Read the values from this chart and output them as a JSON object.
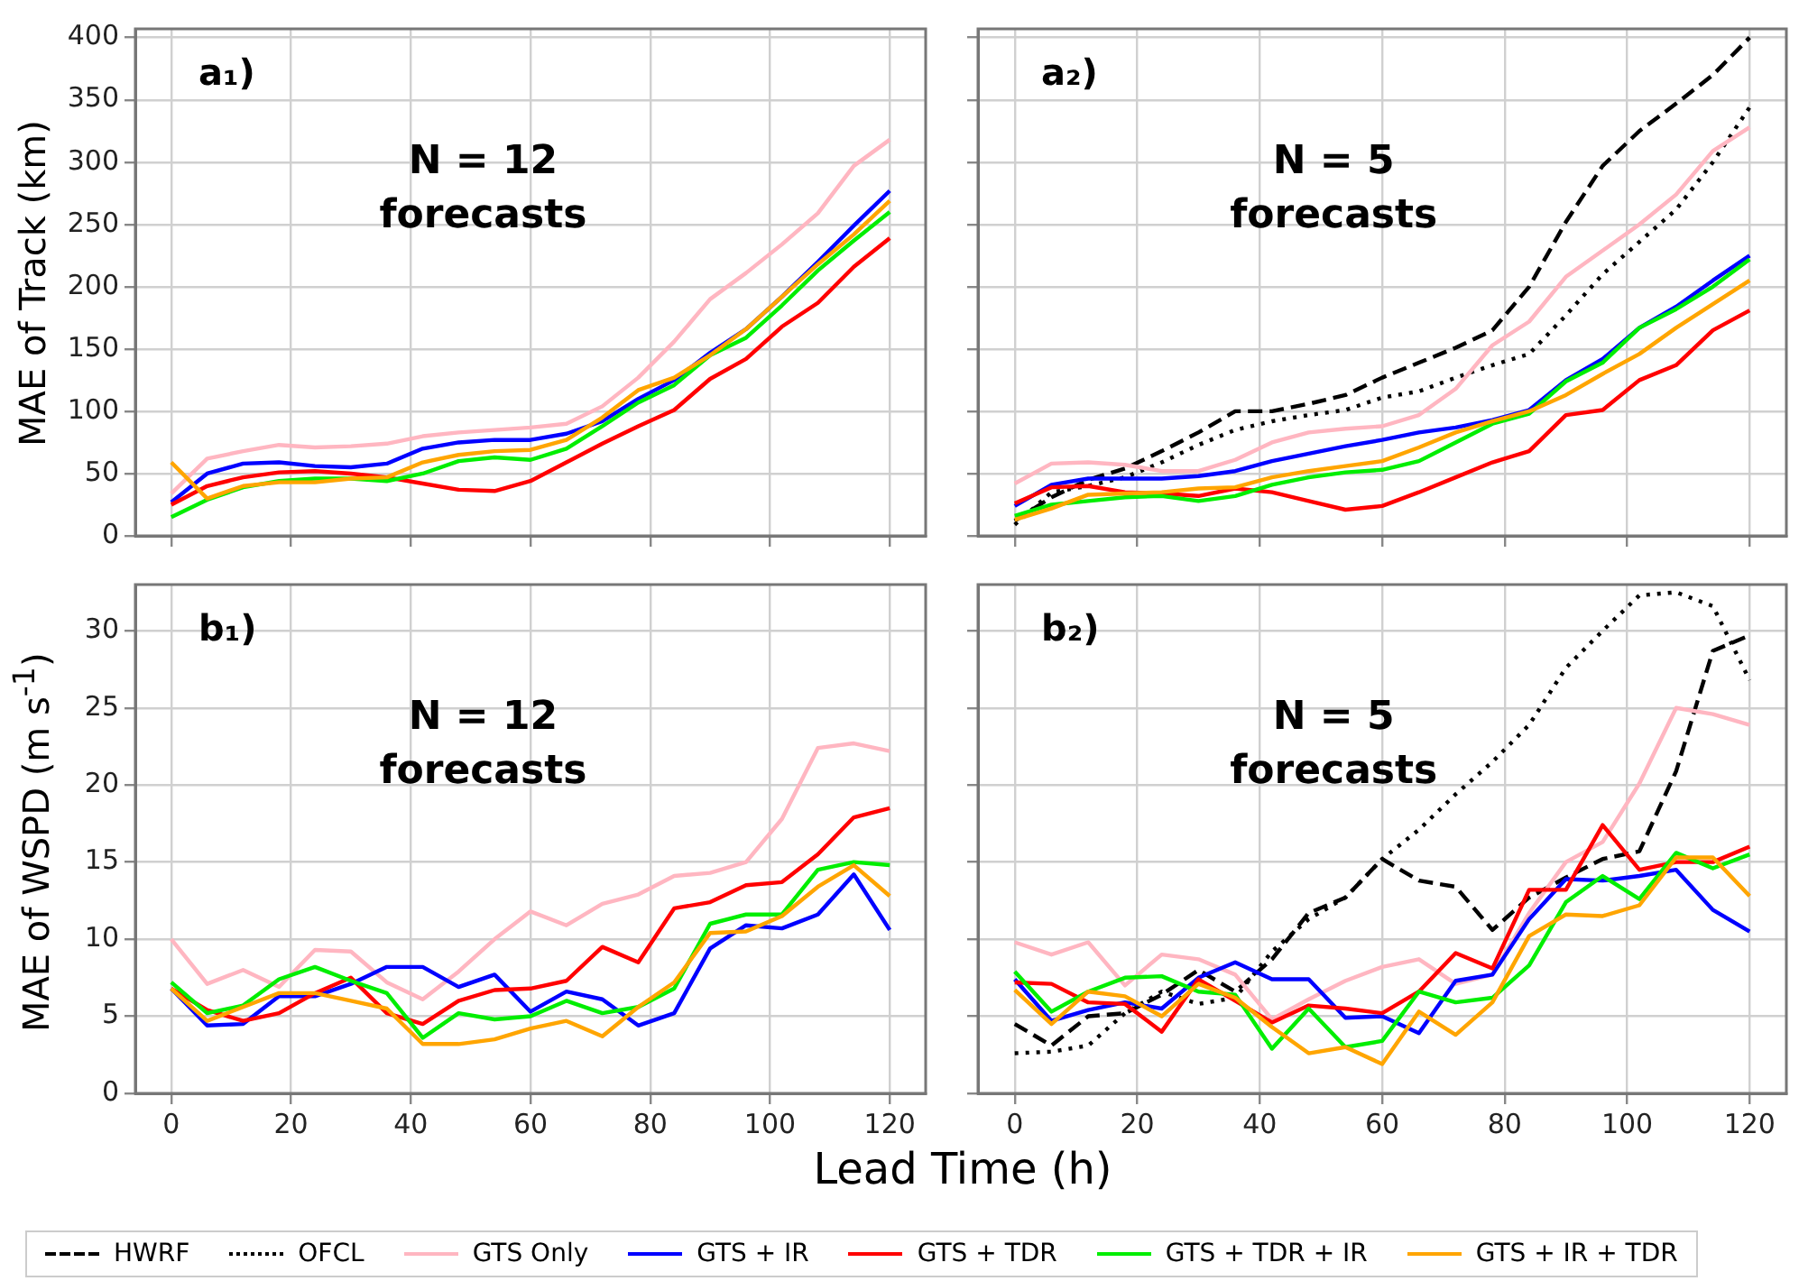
{
  "chart_data": [
    {
      "type": "line",
      "ylabel": "MAE of Track (km)",
      "annotations": [
        "a₁)",
        "N = 12 forecasts"
      ],
      "x": [
        0,
        6,
        12,
        18,
        24,
        30,
        36,
        42,
        48,
        54,
        60,
        66,
        72,
        78,
        84,
        90,
        96,
        102,
        108,
        114,
        120
      ],
      "xlim": [
        -6,
        126
      ],
      "xticks": [
        0,
        20,
        40,
        60,
        80,
        100,
        120
      ],
      "ylim": [
        0,
        407
      ],
      "yticks": [
        0,
        50,
        100,
        150,
        200,
        250,
        300,
        350,
        400
      ],
      "grid": true,
      "tick_labels": "y",
      "legend": "bottom",
      "series": [
        {
          "name": "GTS Only",
          "color": "#ffb6c1",
          "values": [
            34,
            62,
            68,
            73,
            71,
            72,
            74,
            80,
            83,
            85,
            87,
            90,
            104,
            127,
            156,
            190,
            211,
            234,
            259,
            297,
            318
          ]
        },
        {
          "name": "GTS + IR",
          "color": "#0000ff",
          "values": [
            27,
            50,
            58,
            59,
            56,
            55,
            58,
            70,
            75,
            77,
            77,
            82,
            92,
            110,
            125,
            147,
            166,
            192,
            220,
            249,
            277
          ]
        },
        {
          "name": "GTS + TDR",
          "color": "#ff0000",
          "values": [
            25,
            40,
            47,
            51,
            52,
            50,
            47,
            42,
            37,
            36,
            44,
            59,
            74,
            88,
            101,
            126,
            142,
            168,
            187,
            216,
            239
          ]
        },
        {
          "name": "GTS + TDR + IR",
          "color": "#00ee00",
          "values": [
            15,
            29,
            39,
            44,
            46,
            46,
            44,
            50,
            60,
            63,
            61,
            70,
            88,
            107,
            121,
            145,
            159,
            185,
            213,
            237,
            260
          ]
        },
        {
          "name": "GTS + IR + TDR",
          "color": "#ffa500",
          "values": [
            59,
            30,
            40,
            43,
            43,
            46,
            47,
            59,
            65,
            68,
            69,
            77,
            95,
            117,
            127,
            145,
            166,
            192,
            218,
            242,
            269
          ]
        }
      ]
    },
    {
      "type": "line",
      "annotations": [
        "a₂)",
        "N = 5 forecasts"
      ],
      "x": [
        0,
        6,
        12,
        18,
        24,
        30,
        36,
        42,
        48,
        54,
        60,
        66,
        72,
        78,
        84,
        90,
        96,
        102,
        108,
        114,
        120
      ],
      "xlim": [
        -6,
        126
      ],
      "xticks": [
        0,
        20,
        40,
        60,
        80,
        100,
        120
      ],
      "ylim": [
        0,
        407
      ],
      "yticks": [
        0,
        50,
        100,
        150,
        200,
        250,
        300,
        350,
        400
      ],
      "grid": true,
      "tick_labels": false,
      "legend": "bottom",
      "series": [
        {
          "name": "HWRF",
          "color": "#000000",
          "line_style": "dashed",
          "values": [
            12,
            31,
            45,
            54,
            68,
            83,
            100,
            100,
            106,
            113,
            127,
            139,
            151,
            165,
            200,
            252,
            297,
            325,
            347,
            370,
            400
          ]
        },
        {
          "name": "OFCL",
          "color": "#000000",
          "line_style": "dotted",
          "values": [
            9,
            35,
            40,
            47,
            59,
            73,
            85,
            92,
            97,
            101,
            111,
            116,
            127,
            137,
            146,
            177,
            210,
            236,
            262,
            300,
            344
          ]
        },
        {
          "name": "GTS Only",
          "color": "#ffb6c1",
          "values": [
            42,
            58,
            59,
            57,
            52,
            52,
            61,
            75,
            83,
            86,
            88,
            97,
            118,
            153,
            172,
            208,
            229,
            250,
            274,
            309,
            328
          ]
        },
        {
          "name": "GTS + IR",
          "color": "#0000ff",
          "values": [
            24,
            41,
            46,
            46,
            46,
            48,
            52,
            60,
            66,
            72,
            77,
            83,
            87,
            93,
            101,
            125,
            142,
            167,
            184,
            205,
            225
          ]
        },
        {
          "name": "GTS + TDR",
          "color": "#ff0000",
          "values": [
            26,
            39,
            40,
            35,
            34,
            32,
            38,
            35,
            28,
            21,
            24,
            35,
            47,
            59,
            68,
            97,
            101,
            125,
            137,
            165,
            181
          ]
        },
        {
          "name": "GTS + TDR + IR",
          "color": "#00ee00",
          "values": [
            16,
            25,
            28,
            31,
            32,
            28,
            32,
            41,
            47,
            51,
            53,
            60,
            75,
            90,
            98,
            124,
            139,
            167,
            182,
            200,
            222
          ]
        },
        {
          "name": "GTS + IR + TDR",
          "color": "#ffa500",
          "values": [
            13,
            22,
            33,
            34,
            35,
            38,
            39,
            47,
            52,
            56,
            60,
            71,
            83,
            92,
            100,
            113,
            130,
            146,
            167,
            186,
            205
          ]
        }
      ]
    },
    {
      "type": "line",
      "ylabel": "MAE of WSPD (m s$^{-1}$)",
      "xlabel": "Lead Time (h)",
      "annotations": [
        "b₁)",
        "N = 12 forecasts"
      ],
      "x": [
        0,
        6,
        12,
        18,
        24,
        30,
        36,
        42,
        48,
        54,
        60,
        66,
        72,
        78,
        84,
        90,
        96,
        102,
        108,
        114,
        120
      ],
      "xlim": [
        -6,
        126
      ],
      "xticks": [
        0,
        20,
        40,
        60,
        80,
        100,
        120
      ],
      "ylim": [
        0,
        33
      ],
      "yticks": [
        0,
        5,
        10,
        15,
        20,
        25,
        30
      ],
      "grid": true,
      "legend": "bottom",
      "series": [
        {
          "name": "GTS Only",
          "color": "#ffb6c1",
          "values": [
            10.0,
            7.1,
            8.0,
            6.9,
            9.3,
            9.2,
            7.2,
            6.1,
            7.9,
            10.0,
            11.8,
            10.9,
            12.3,
            12.9,
            14.1,
            14.3,
            15.0,
            17.8,
            22.4,
            22.7,
            22.2
          ]
        },
        {
          "name": "GTS + IR",
          "color": "#0000ff",
          "values": [
            6.8,
            4.4,
            4.5,
            6.3,
            6.3,
            7.1,
            8.2,
            8.2,
            6.9,
            7.7,
            5.3,
            6.6,
            6.1,
            4.4,
            5.2,
            9.4,
            10.9,
            10.7,
            11.6,
            14.2,
            10.6
          ]
        },
        {
          "name": "GTS + TDR",
          "color": "#ff0000",
          "values": [
            6.8,
            5.4,
            4.7,
            5.2,
            6.5,
            7.5,
            5.2,
            4.5,
            6.0,
            6.7,
            6.8,
            7.3,
            9.5,
            8.5,
            12.0,
            12.4,
            13.5,
            13.7,
            15.5,
            17.9,
            18.5
          ]
        },
        {
          "name": "GTS + TDR + IR",
          "color": "#00ee00",
          "values": [
            7.2,
            5.2,
            5.7,
            7.4,
            8.2,
            7.3,
            6.5,
            3.6,
            5.2,
            4.8,
            5.0,
            6.0,
            5.2,
            5.6,
            6.8,
            11.0,
            11.6,
            11.6,
            14.5,
            15.0,
            14.8
          ]
        },
        {
          "name": "GTS + IR + TDR",
          "color": "#ffa500",
          "values": [
            6.8,
            4.7,
            5.6,
            6.5,
            6.5,
            6.0,
            5.5,
            3.2,
            3.2,
            3.5,
            4.2,
            4.7,
            3.7,
            5.6,
            7.2,
            10.4,
            10.5,
            11.5,
            13.4,
            14.8,
            12.8
          ]
        }
      ]
    },
    {
      "type": "line",
      "annotations": [
        "b₂)",
        "N = 5 forecasts"
      ],
      "x": [
        0,
        6,
        12,
        18,
        24,
        30,
        36,
        42,
        48,
        54,
        60,
        66,
        72,
        78,
        84,
        90,
        96,
        102,
        108,
        114,
        120
      ],
      "xlim": [
        -6,
        126
      ],
      "xticks": [
        0,
        20,
        40,
        60,
        80,
        100,
        120
      ],
      "ylim": [
        0,
        33
      ],
      "yticks": [
        0,
        5,
        10,
        15,
        20,
        25,
        30
      ],
      "grid": true,
      "tick_labels": "x",
      "legend": "bottom",
      "series": [
        {
          "name": "HWRF",
          "color": "#000000",
          "line_style": "dashed",
          "values": [
            4.5,
            3.1,
            5.0,
            5.2,
            6.4,
            8.0,
            6.6,
            8.7,
            11.7,
            12.7,
            15.2,
            13.8,
            13.4,
            10.6,
            12.7,
            14.0,
            15.2,
            15.7,
            20.9,
            28.7,
            29.7
          ]
        },
        {
          "name": "OFCL",
          "color": "#000000",
          "line_style": "dotted",
          "values": [
            2.6,
            2.7,
            3.1,
            5.2,
            6.6,
            5.8,
            6.2,
            9.2,
            11.3,
            12.7,
            15.2,
            17.1,
            19.4,
            21.5,
            23.9,
            27.6,
            30.0,
            32.3,
            32.5,
            31.6,
            26.8
          ]
        },
        {
          "name": "GTS Only",
          "color": "#ffb6c1",
          "values": [
            9.8,
            9.0,
            9.8,
            7.0,
            9.0,
            8.7,
            7.7,
            4.8,
            6.1,
            7.3,
            8.2,
            8.7,
            7.1,
            7.7,
            11.7,
            15.0,
            16.3,
            20.1,
            25.0,
            24.6,
            23.9
          ]
        },
        {
          "name": "GTS + IR",
          "color": "#0000ff",
          "values": [
            7.4,
            4.7,
            5.4,
            5.9,
            5.5,
            7.5,
            8.5,
            7.4,
            7.4,
            4.9,
            5.0,
            3.9,
            7.3,
            7.7,
            11.3,
            13.9,
            13.8,
            14.1,
            14.5,
            11.9,
            10.5
          ]
        },
        {
          "name": "GTS + TDR",
          "color": "#ff0000",
          "values": [
            7.2,
            7.1,
            5.9,
            5.8,
            4.0,
            7.4,
            6.0,
            4.6,
            5.7,
            5.5,
            5.2,
            6.6,
            9.1,
            8.1,
            13.2,
            13.2,
            17.4,
            14.5,
            15.0,
            15.0,
            16.0
          ]
        },
        {
          "name": "GTS + TDR + IR",
          "color": "#00ee00",
          "values": [
            7.9,
            5.3,
            6.6,
            7.5,
            7.6,
            6.6,
            6.4,
            2.9,
            5.5,
            3.0,
            3.4,
            6.6,
            5.9,
            6.2,
            8.3,
            12.4,
            14.1,
            12.6,
            15.6,
            14.6,
            15.5
          ]
        },
        {
          "name": "GTS + IR + TDR",
          "color": "#ffa500",
          "values": [
            6.7,
            4.5,
            6.6,
            6.3,
            5.0,
            7.1,
            6.2,
            4.3,
            2.6,
            3.0,
            1.9,
            5.3,
            3.8,
            5.9,
            10.2,
            11.6,
            11.5,
            12.2,
            15.3,
            15.3,
            12.8
          ]
        }
      ]
    }
  ]
}
